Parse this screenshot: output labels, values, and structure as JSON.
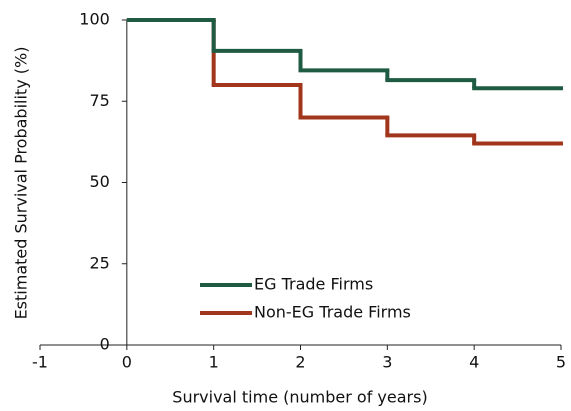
{
  "chart_data": {
    "type": "step",
    "x_label": "Survival time (number of years)",
    "y_label": "Estimated Survival Probability (%)",
    "x": [
      0,
      1,
      2,
      3,
      4,
      5
    ],
    "series": [
      {
        "name": "EG Trade Firms",
        "color": "#1e5b42",
        "values": [
          100,
          90.5,
          84.5,
          81.5,
          79,
          79
        ]
      },
      {
        "name": "Non-EG Trade Firms",
        "color": "#a2361d",
        "values": [
          100,
          80,
          70,
          64.5,
          62,
          62
        ]
      }
    ],
    "xlim": [
      -1,
      5
    ],
    "xticks": [
      -1,
      0,
      1,
      2,
      3,
      4,
      5
    ],
    "ylim": [
      0,
      100
    ],
    "yticks": [
      0,
      25,
      50,
      75,
      100
    ]
  }
}
